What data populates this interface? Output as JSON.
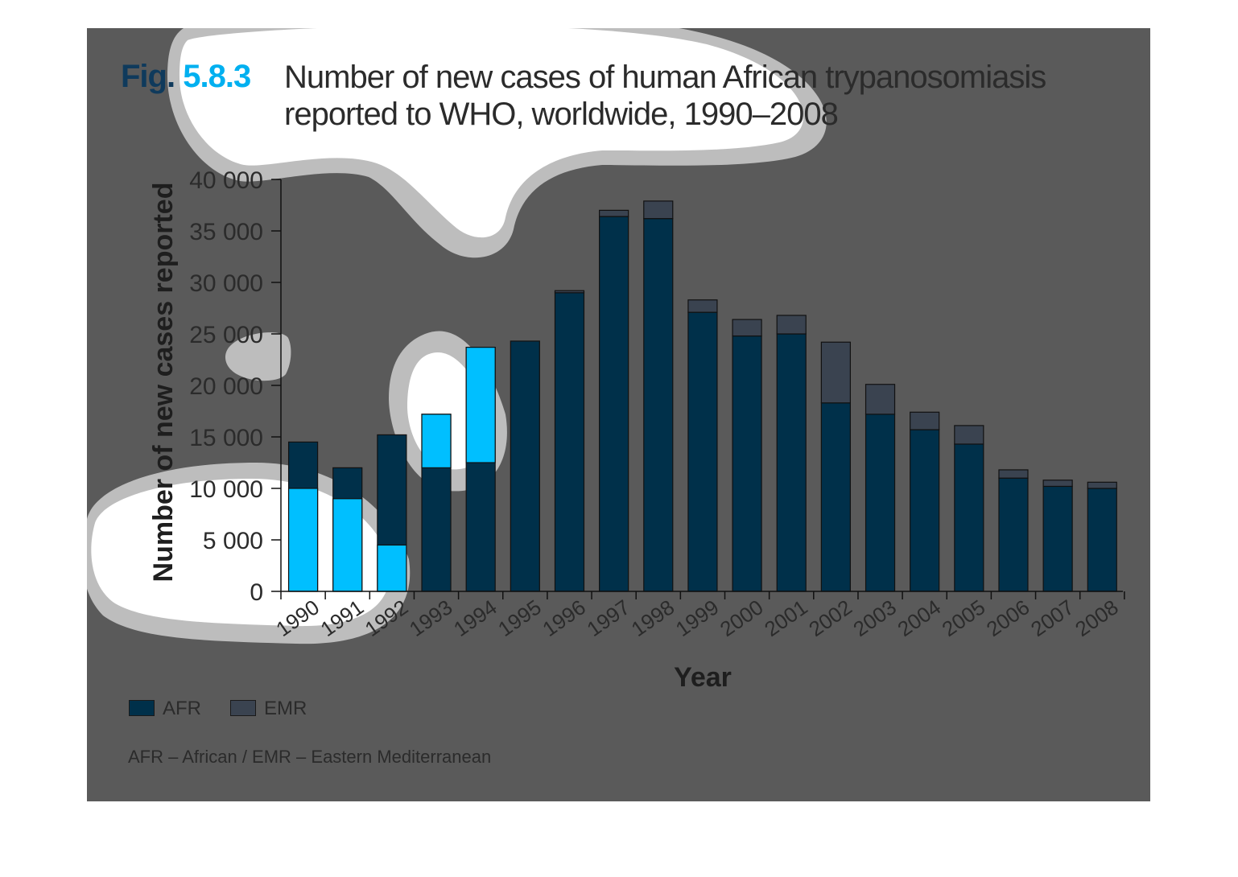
{
  "figure": {
    "label_word": "Fig.",
    "label_number": "5.8.3",
    "title": "Number of new cases of human African trypanosomiasis reported to WHO, worldwide, 1990–2008"
  },
  "colors": {
    "panel_background": "#5a5a5a",
    "afr": "#00304a",
    "emr": "#3a4350",
    "highlight": "#00bfff",
    "blob_white": "#ffffff",
    "blob_ring": "#bdbdbd",
    "text": "#2b2b2b"
  },
  "chart_data": {
    "type": "bar",
    "stacked": true,
    "categories": [
      "1990",
      "1991",
      "1992",
      "1993",
      "1994",
      "1995",
      "1996",
      "1997",
      "1998",
      "1999",
      "2000",
      "2001",
      "2002",
      "2003",
      "2004",
      "2005",
      "2006",
      "2007",
      "2008"
    ],
    "series": [
      {
        "name": "AFR",
        "values": [
          14500,
          12000,
          15200,
          17200,
          23700,
          24300,
          29000,
          36400,
          36200,
          27100,
          24800,
          25000,
          18300,
          17200,
          15700,
          14300,
          11000,
          10200,
          10000
        ]
      },
      {
        "name": "EMR",
        "values": [
          0,
          0,
          0,
          0,
          0,
          0,
          200,
          600,
          1700,
          1200,
          1600,
          1800,
          5900,
          2900,
          1700,
          1800,
          800,
          600,
          600
        ]
      }
    ],
    "xlabel": "Year",
    "ylabel": "Number of new cases reported",
    "ylim": [
      0,
      40000
    ],
    "y_ticks": [
      0,
      5000,
      10000,
      15000,
      20000,
      25000,
      30000,
      35000,
      40000
    ],
    "y_tick_labels": [
      "0",
      "5 000",
      "10 000",
      "15 000",
      "20 000",
      "25 000",
      "30 000",
      "35 000",
      "40 000"
    ],
    "x_tick_rotation": "diagonal",
    "legend_position": "bottom-left",
    "grid": false,
    "overlays": [
      {
        "kind": "highlight",
        "region": "upper-left title area"
      },
      {
        "kind": "highlight",
        "region": "bars 1990–1992 lower section"
      },
      {
        "kind": "highlight",
        "region": "bars 1993–1994 middle section"
      }
    ]
  },
  "legend": {
    "items": [
      {
        "label": "AFR",
        "color": "#00304a"
      },
      {
        "label": "EMR",
        "color": "#3a4350"
      }
    ]
  },
  "footnote": "AFR – African / EMR – Eastern Mediterranean"
}
